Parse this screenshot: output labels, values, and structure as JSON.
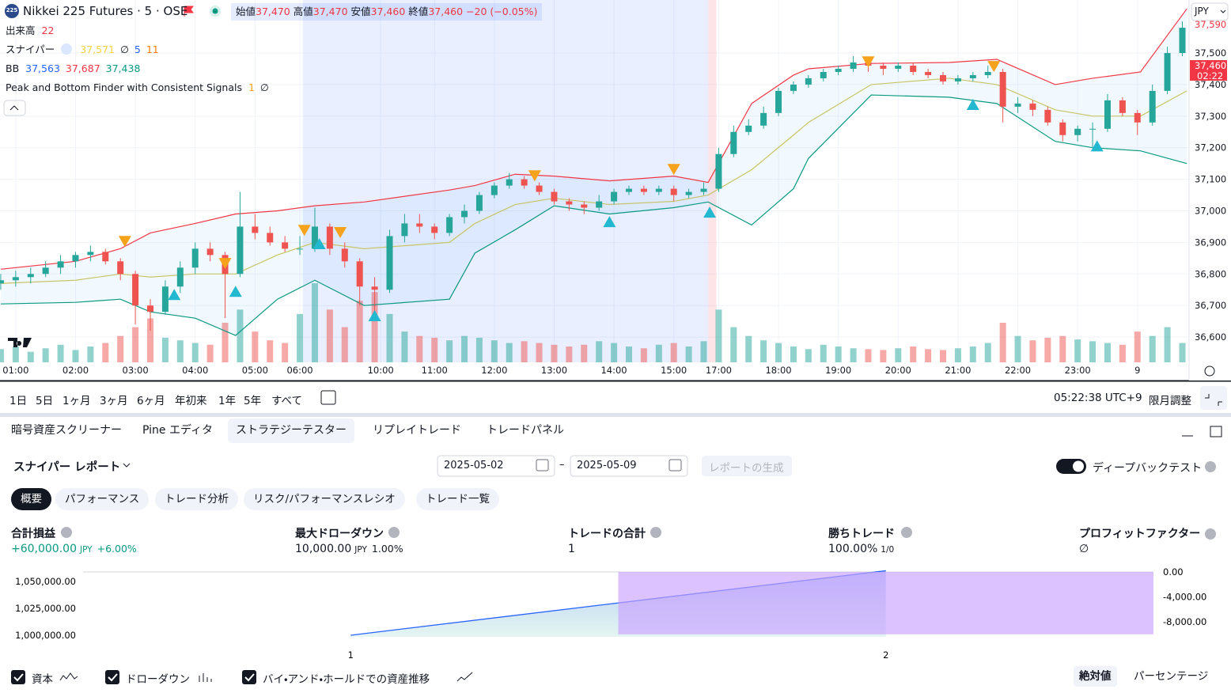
{
  "chart_data": [
    {
      "type": "candlestick",
      "xlim": [
        -0.05,
        79.45
      ],
      "ylim": [
        36520,
        37668
      ],
      "yticks": [
        {
          "value": 37500,
          "label": "37,500"
        },
        {
          "value": 37400,
          "label": "37,400"
        },
        {
          "value": 37300,
          "label": "37,300"
        },
        {
          "value": 37200,
          "label": "37,200"
        },
        {
          "value": 37100,
          "label": "37,100"
        },
        {
          "value": 37000,
          "label": "37,000"
        },
        {
          "value": 36900,
          "label": "36,900"
        },
        {
          "value": 36800,
          "label": "36,800"
        },
        {
          "value": 36700,
          "label": "36,700"
        },
        {
          "value": 36600,
          "label": "36,600"
        }
      ],
      "xticks": [
        {
          "value": 1,
          "label": "01:00"
        },
        {
          "value": 5,
          "label": "02:00"
        },
        {
          "value": 9,
          "label": "03:00"
        },
        {
          "value": 13,
          "label": "04:00"
        },
        {
          "value": 17,
          "label": "05:00"
        },
        {
          "value": 20,
          "label": "06:00"
        },
        {
          "value": 25.4,
          "label": "10:00"
        },
        {
          "value": 29,
          "label": "11:00"
        },
        {
          "value": 33,
          "label": "12:00"
        },
        {
          "value": 37,
          "label": "13:00"
        },
        {
          "value": 41,
          "label": "14:00"
        },
        {
          "value": 45,
          "label": "15:00"
        },
        {
          "value": 48,
          "label": "17:00"
        },
        {
          "value": 52,
          "label": "18:00"
        },
        {
          "value": 56,
          "label": "19:00"
        },
        {
          "value": 60,
          "label": "20:00"
        },
        {
          "value": 64,
          "label": "21:00"
        },
        {
          "value": 68,
          "label": "22:00"
        },
        {
          "value": 72,
          "label": "23:00"
        },
        {
          "value": 76,
          "label": "9"
        }
      ],
      "grid": true,
      "up_color": "#26a69a",
      "down_color": "#ef5350",
      "candles": [
        [
          36770,
          36800,
          36750,
          36780
        ],
        [
          36780,
          36810,
          36760,
          36790
        ],
        [
          36790,
          36820,
          36770,
          36800
        ],
        [
          36800,
          36840,
          36790,
          36820
        ],
        [
          36820,
          36860,
          36800,
          36840
        ],
        [
          36840,
          36870,
          36820,
          36860
        ],
        [
          36860,
          36890,
          36840,
          36870
        ],
        [
          36870,
          36880,
          36830,
          36840
        ],
        [
          36840,
          36850,
          36780,
          36800
        ],
        [
          36800,
          36810,
          36640,
          36700
        ],
        [
          36700,
          36720,
          36620,
          36680
        ],
        [
          36680,
          36780,
          36670,
          36760
        ],
        [
          36760,
          36840,
          36740,
          36820
        ],
        [
          36820,
          36900,
          36800,
          36880
        ],
        [
          36880,
          36900,
          36840,
          36860
        ],
        [
          36860,
          36870,
          36660,
          36800
        ],
        [
          36800,
          37060,
          36790,
          36950
        ],
        [
          36950,
          36990,
          36910,
          36930
        ],
        [
          36930,
          36950,
          36890,
          36900
        ],
        [
          36900,
          36920,
          36870,
          36880
        ],
        [
          36880,
          36920,
          36860,
          36880
        ],
        [
          36880,
          37010,
          36870,
          36950
        ],
        [
          36950,
          36960,
          36860,
          36880
        ],
        [
          36880,
          36900,
          36820,
          36840
        ],
        [
          36840,
          36850,
          36700,
          36760
        ],
        [
          36760,
          36790,
          36680,
          36750
        ],
        [
          36750,
          36940,
          36740,
          36920
        ],
        [
          36920,
          36990,
          36900,
          36960
        ],
        [
          36960,
          36990,
          36930,
          36950
        ],
        [
          36950,
          36960,
          36910,
          36930
        ],
        [
          36930,
          36990,
          36920,
          36980
        ],
        [
          36980,
          37020,
          36960,
          37000
        ],
        [
          37000,
          37060,
          36990,
          37050
        ],
        [
          37050,
          37090,
          37040,
          37080
        ],
        [
          37080,
          37120,
          37070,
          37100
        ],
        [
          37100,
          37110,
          37070,
          37080
        ],
        [
          37080,
          37090,
          37050,
          37060
        ],
        [
          37060,
          37070,
          37020,
          37030
        ],
        [
          37030,
          37040,
          37000,
          37020
        ],
        [
          37020,
          37030,
          36990,
          37010
        ],
        [
          37010,
          37050,
          37000,
          37030
        ],
        [
          37030,
          37070,
          37020,
          37060
        ],
        [
          37060,
          37080,
          37050,
          37070
        ],
        [
          37070,
          37080,
          37050,
          37060
        ],
        [
          37060,
          37080,
          37050,
          37070
        ],
        [
          37070,
          37080,
          37030,
          37050
        ],
        [
          37050,
          37070,
          37040,
          37060
        ],
        [
          37060,
          37090,
          37050,
          37070
        ],
        [
          37070,
          37200,
          37060,
          37180
        ],
        [
          37180,
          37270,
          37170,
          37250
        ],
        [
          37250,
          37290,
          37240,
          37270
        ],
        [
          37270,
          37330,
          37260,
          37310
        ],
        [
          37310,
          37390,
          37300,
          37380
        ],
        [
          37380,
          37410,
          37370,
          37400
        ],
        [
          37400,
          37430,
          37390,
          37420
        ],
        [
          37420,
          37450,
          37410,
          37440
        ],
        [
          37440,
          37460,
          37430,
          37450
        ],
        [
          37450,
          37490,
          37440,
          37470
        ],
        [
          37470,
          37480,
          37440,
          37460
        ],
        [
          37460,
          37470,
          37430,
          37450
        ],
        [
          37450,
          37470,
          37440,
          37460
        ],
        [
          37460,
          37470,
          37430,
          37440
        ],
        [
          37440,
          37450,
          37420,
          37430
        ],
        [
          37430,
          37440,
          37400,
          37410
        ],
        [
          37410,
          37430,
          37400,
          37420
        ],
        [
          37420,
          37440,
          37410,
          37430
        ],
        [
          37430,
          37460,
          37420,
          37440
        ],
        [
          37440,
          37450,
          37280,
          37330
        ],
        [
          37330,
          37360,
          37310,
          37340
        ],
        [
          37340,
          37350,
          37300,
          37320
        ],
        [
          37320,
          37330,
          37270,
          37280
        ],
        [
          37280,
          37290,
          37220,
          37240
        ],
        [
          37240,
          37270,
          37220,
          37260
        ],
        [
          37260,
          37280,
          37200,
          37260
        ],
        [
          37260,
          37370,
          37250,
          37350
        ],
        [
          37350,
          37360,
          37300,
          37310
        ],
        [
          37310,
          37320,
          37240,
          37280
        ],
        [
          37280,
          37400,
          37270,
          37380
        ],
        [
          37380,
          37520,
          37370,
          37500
        ],
        [
          37500,
          37600,
          37490,
          37580
        ]
      ],
      "volume": [
        15,
        18,
        12,
        16,
        20,
        14,
        18,
        22,
        30,
        40,
        50,
        28,
        25,
        22,
        20,
        45,
        60,
        35,
        25,
        22,
        55,
        90,
        60,
        40,
        70,
        80,
        55,
        35,
        30,
        28,
        25,
        30,
        28,
        25,
        22,
        24,
        22,
        20,
        18,
        20,
        24,
        22,
        18,
        16,
        20,
        22,
        18,
        24,
        60,
        40,
        30,
        25,
        22,
        18,
        15,
        20,
        18,
        16,
        15,
        14,
        16,
        18,
        15,
        14,
        16,
        18,
        22,
        45,
        30,
        25,
        28,
        30,
        26,
        24,
        22,
        20,
        35,
        30,
        40,
        22
      ],
      "bands": {
        "x": [
          0,
          5,
          8,
          10,
          13,
          15.7,
          18.5,
          21,
          24.3,
          30,
          31.7,
          34.4,
          37,
          40.7,
          45,
          47.3,
          50.2,
          53,
          54,
          58.2,
          63.4,
          66.6,
          70.5,
          73,
          76.2,
          79.3
        ],
        "upper": [
          36815,
          36840,
          36880,
          36930,
          36960,
          36990,
          37000,
          37016,
          37028,
          37066,
          37080,
          37116,
          37110,
          37095,
          37110,
          37090,
          37340,
          37430,
          37450,
          37467,
          37470,
          37480,
          37400,
          37420,
          37440,
          37640
        ],
        "basis": [
          36770,
          36780,
          36800,
          36790,
          36800,
          36800,
          36860,
          36900,
          36880,
          36900,
          36960,
          37020,
          37040,
          37020,
          37030,
          37050,
          37130,
          37240,
          37280,
          37400,
          37420,
          37400,
          37320,
          37300,
          37300,
          37380
        ],
        "lower": [
          36705,
          36710,
          36720,
          36680,
          36660,
          36605,
          36720,
          36780,
          36700,
          36720,
          36866,
          36940,
          37016,
          36990,
          37010,
          37028,
          36955,
          37070,
          37166,
          37367,
          37360,
          37340,
          37220,
          37200,
          37190,
          37150
        ],
        "upper_color": "#f23645",
        "basis_color": "#c8c46a",
        "lower_color": "#089981"
      },
      "highlight": [
        20.2,
        47.3
      ],
      "session_break": [
        47.3,
        47.85
      ],
      "signals": {
        "peaks": {
          "x": [
            8.3,
            15,
            20.3,
            22.7,
            35.7,
            45,
            58,
            66.4
          ],
          "values": [
            36903,
            36833,
            36938,
            36931,
            37111,
            37131,
            37472,
            37457
          ],
          "color": "#f7a21b"
        },
        "bottoms": {
          "x": [
            11.6,
            15.7,
            21.3,
            25,
            40.7,
            47.4,
            65,
            73.3
          ],
          "values": [
            36735,
            36745,
            36896,
            36668,
            36966,
            36996,
            37337,
            37206
          ],
          "color": "#22b8cf"
        }
      },
      "price_tags": [
        {
          "value": 37590,
          "label": "37,590",
          "color": "#f23645"
        },
        {
          "value": 37460,
          "label": "37,460",
          "countdown": "02:22",
          "color": "#f23645"
        }
      ]
    },
    {
      "type": "line",
      "xlim": [
        0.5,
        2.5
      ],
      "ylim": [
        998500,
        1058800
      ],
      "y2lim": [
        -10400,
        0
      ],
      "xticks": [
        1,
        2
      ],
      "yticks": [
        {
          "value": 1000000,
          "label": "1,000,000.00"
        },
        {
          "value": 1025000,
          "label": "1,025,000.00"
        },
        {
          "value": 1050000,
          "label": "1,050,000.00"
        }
      ],
      "y2ticks": [
        {
          "value": 0,
          "label": "0.00"
        },
        {
          "value": -4000,
          "label": "-4,000.00"
        },
        {
          "value": -8000,
          "label": "-8,000.00"
        }
      ],
      "series": [
        {
          "name": "資本",
          "color": "#2962ff",
          "x": [
            1,
            2
          ],
          "values": [
            1000000,
            1060000
          ]
        },
        {
          "name": "ドローダウン",
          "type": "bar",
          "axis": "y2",
          "color": "#c9a2ff",
          "x": [
            2
          ],
          "values": [
            -10000
          ]
        },
        {
          "name": "バイ・アンド・ホールドでの資産推移",
          "color": "#f7a21b",
          "x": [
            1,
            2
          ],
          "values": [
            null,
            null
          ]
        }
      ]
    }
  ],
  "header": {
    "logo": "225",
    "symbol": "Nikkei 225 Futures · 5 · OSE",
    "ohlc": [
      {
        "label": "始値",
        "value": "37,470"
      },
      {
        "label": "高値",
        "value": "37,470"
      },
      {
        "label": "安値",
        "value": "37,460"
      },
      {
        "label": "終値",
        "value": "37,460"
      }
    ],
    "change": "−20 (−0.05%)"
  },
  "indicators": [
    {
      "name": "出来高",
      "values": [
        "22"
      ],
      "colors": [
        "#f23645"
      ]
    },
    {
      "name": "スナイパー",
      "values": [
        "37,571",
        "∅",
        "5",
        "11"
      ],
      "colors": [
        "#f5d33b",
        "#131722",
        "#2962ff",
        "#f57c00"
      ]
    },
    {
      "name": "BB",
      "values": [
        "37,563",
        "37,687",
        "37,438"
      ],
      "colors": [
        "#2962ff",
        "#f23645",
        "#089981"
      ]
    },
    {
      "name": "Peak and Bottom Finder with Consistent Signals",
      "values": [
        "1",
        "∅"
      ],
      "colors": [
        "#f7a21b",
        "#131722"
      ]
    }
  ],
  "currency": "JPY",
  "range_buttons": [
    "1日",
    "5日",
    "1ヶ月",
    "3ヶ月",
    "6ヶ月",
    "年初来",
    "1年",
    "5年",
    "すべて"
  ],
  "clock": "05:22:38 UTC+9",
  "adjust": "限月調整",
  "tabs": [
    "暗号資産スクリーナー",
    "Pine エディタ",
    "ストラテジーテスター",
    "リプレイトレード",
    "トレードパネル"
  ],
  "active_tab": 2,
  "report": {
    "title": "スナイパー レポート",
    "date_from": "2025-05-02",
    "date_sep": "–",
    "date_to": "2025-05-09",
    "generate": "レポートの生成",
    "deep": "ディープバックテスト",
    "subtabs": [
      "概要",
      "パフォーマンス",
      "トレード分析",
      "リスク/パフォーマンスレシオ",
      "トレード一覧"
    ],
    "active_subtab": 0,
    "metrics": [
      {
        "label": "合計損益",
        "value": "+60,000.00",
        "unit": "JPY",
        "extra": "+6.00%",
        "color": "#089981"
      },
      {
        "label": "最大ドローダウン",
        "value": "10,000.00",
        "unit": "JPY",
        "extra": "1.00%",
        "color": "#131722"
      },
      {
        "label": "トレードの合計",
        "value": "1",
        "color": "#131722"
      },
      {
        "label": "勝ちトレード",
        "value": "100.00%",
        "extra": "1/0",
        "color": "#131722"
      },
      {
        "label": "プロフィットファクター",
        "value": "∅",
        "color": "#131722"
      }
    ],
    "modes": [
      "絶対値",
      "パーセンテージ"
    ],
    "active_mode": 0
  }
}
